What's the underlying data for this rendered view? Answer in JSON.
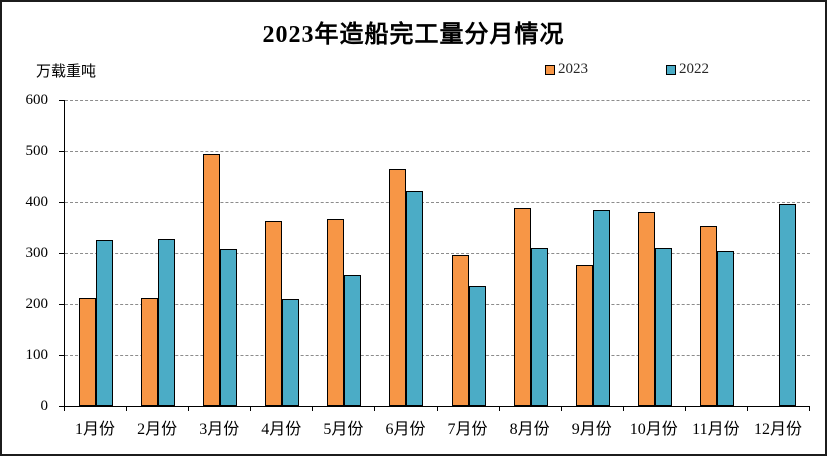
{
  "chart_data": {
    "type": "bar",
    "title": "2023年造船完工量分月情况",
    "unit_label": "万载重吨",
    "categories": [
      "1月份",
      "2月份",
      "3月份",
      "4月份",
      "5月份",
      "6月份",
      "7月份",
      "8月份",
      "9月份",
      "10月份",
      "11月份",
      "12月份"
    ],
    "series": [
      {
        "name": "2023",
        "color": "#F79646",
        "values": [
          211,
          212,
          495,
          362,
          367,
          465,
          296,
          388,
          277,
          380,
          352,
          null
        ]
      },
      {
        "name": "2022",
        "color": "#4BACC6",
        "values": [
          326,
          328,
          307,
          210,
          257,
          421,
          235,
          310,
          385,
          309,
          304,
          397
        ]
      }
    ],
    "ylim": [
      0,
      600
    ],
    "yticks": [
      0,
      100,
      200,
      300,
      400,
      500,
      600
    ],
    "ylabel": "",
    "xlabel": "",
    "grid": "horizontal-dashed",
    "legend_position": "top-right",
    "bar_outline_color": "#000000",
    "gridline_color": "#8c8c8c",
    "background_color": "#ffffff",
    "frame_border_color": "#1c1c1c"
  }
}
